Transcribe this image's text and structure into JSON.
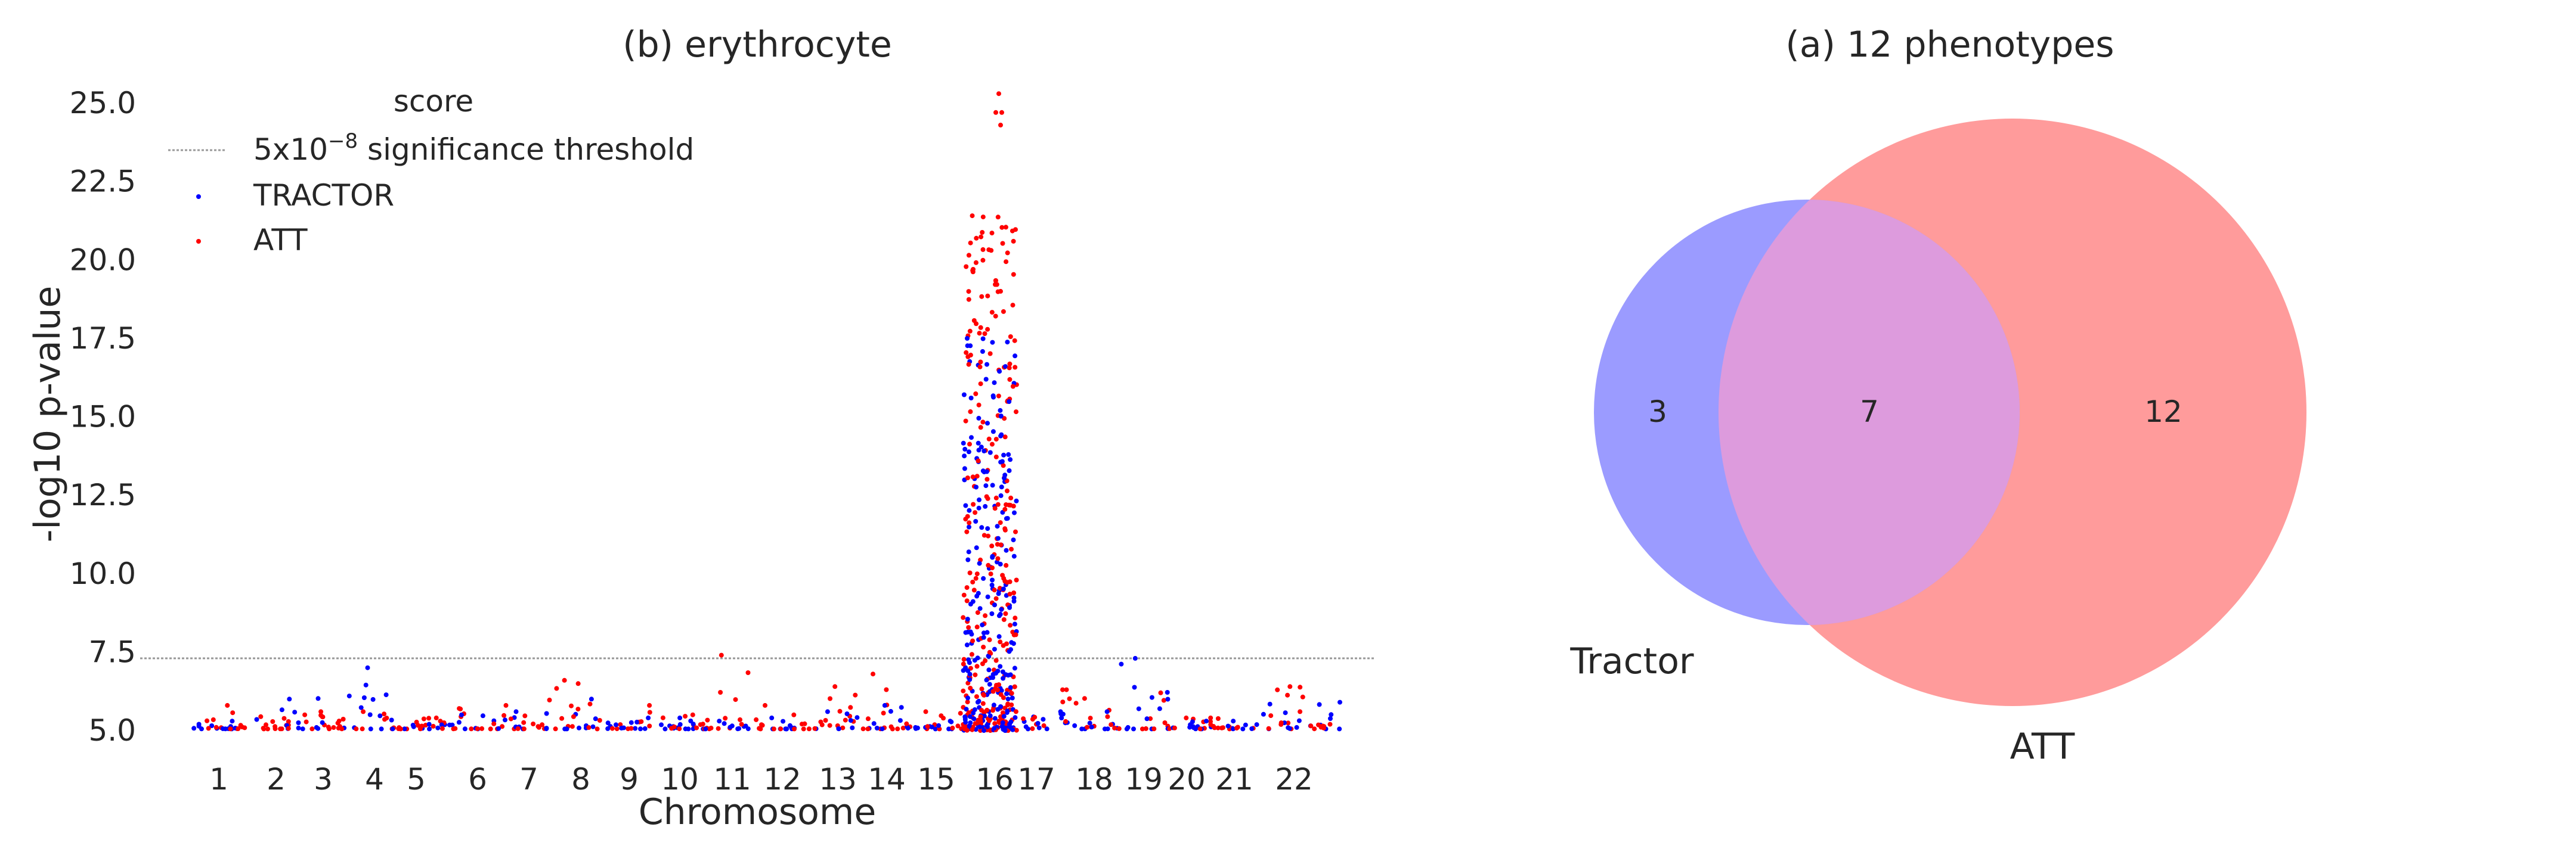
{
  "chart_data": [
    {
      "type": "scatter",
      "title": "(b) erythrocyte",
      "xlabel": "Chromosome",
      "ylabel": "-log10 p-value",
      "ylim": [
        5.0,
        25.4
      ],
      "yticks": [
        "5.0",
        "7.5",
        "10.0",
        "12.5",
        "15.0",
        "17.5",
        "20.0",
        "22.5",
        "25.0"
      ],
      "yticks_values": [
        5.0,
        7.5,
        10.0,
        12.5,
        15.0,
        17.5,
        20.0,
        22.5,
        25.0
      ],
      "xticks": [
        "1",
        "2",
        "3",
        "4",
        "5",
        "6",
        "7",
        "8",
        "9",
        "10",
        "11",
        "12",
        "13",
        "14",
        "15",
        "16",
        "17",
        "18",
        "19",
        "20",
        "21",
        "22"
      ],
      "grid": false,
      "threshold": {
        "value": 7.3,
        "label_prefix": "5x10",
        "label_exponent": "−8",
        "label_suffix": " significance threshold",
        "color": "#999999"
      },
      "legend": {
        "title": "score",
        "position": "top-left"
      },
      "series": [
        {
          "name": "TRACTOR",
          "color": "#0000ff"
        },
        {
          "name": "ATT",
          "color": "#ff0000"
        }
      ],
      "points_note": "dense genome-wide scatter; values approximated per chromosome",
      "chromosome_peaks": [
        {
          "chr": "1",
          "max_tractor": 5.3,
          "max_att": 5.8
        },
        {
          "chr": "2",
          "max_tractor": 6.0,
          "max_att": 5.5
        },
        {
          "chr": "3",
          "max_tractor": 6.1,
          "max_att": 5.6
        },
        {
          "chr": "4",
          "max_tractor": 7.0,
          "max_att": 5.6
        },
        {
          "chr": "5",
          "max_tractor": 5.2,
          "max_att": 5.4
        },
        {
          "chr": "6",
          "max_tractor": 5.5,
          "max_att": 5.7
        },
        {
          "chr": "7",
          "max_tractor": 5.6,
          "max_att": 5.8
        },
        {
          "chr": "8",
          "max_tractor": 6.0,
          "max_att": 6.6
        },
        {
          "chr": "9",
          "max_tractor": 5.4,
          "max_att": 5.8
        },
        {
          "chr": "10",
          "max_tractor": 5.4,
          "max_att": 5.5
        },
        {
          "chr": "11",
          "max_tractor": 5.3,
          "max_att": 7.4
        },
        {
          "chr": "12",
          "max_tractor": 5.4,
          "max_att": 5.8
        },
        {
          "chr": "13",
          "max_tractor": 5.6,
          "max_att": 6.4
        },
        {
          "chr": "14",
          "max_tractor": 5.8,
          "max_att": 6.8
        },
        {
          "chr": "15",
          "max_tractor": 5.3,
          "max_att": 5.6
        },
        {
          "chr": "16",
          "max_tractor": 17.5,
          "max_att": 25.3
        },
        {
          "chr": "17",
          "max_tractor": 5.6,
          "max_att": 6.3
        },
        {
          "chr": "18",
          "max_tractor": 5.6,
          "max_att": 6.3
        },
        {
          "chr": "19",
          "max_tractor": 7.3,
          "max_att": 6.2
        },
        {
          "chr": "20",
          "max_tractor": 5.3,
          "max_att": 5.4
        },
        {
          "chr": "21",
          "max_tractor": 5.3,
          "max_att": 5.4
        },
        {
          "chr": "22",
          "max_tractor": 5.9,
          "max_att": 6.4
        }
      ]
    },
    {
      "type": "venn",
      "title": "(a) 12 phenotypes",
      "sets": [
        {
          "name": "Tractor",
          "only": 3,
          "color": "#9b9bff"
        },
        {
          "name": "ATT",
          "only": 12,
          "color": "#ff9b9b"
        }
      ],
      "overlap": 7,
      "overlap_color": "#dd9bdd"
    }
  ]
}
